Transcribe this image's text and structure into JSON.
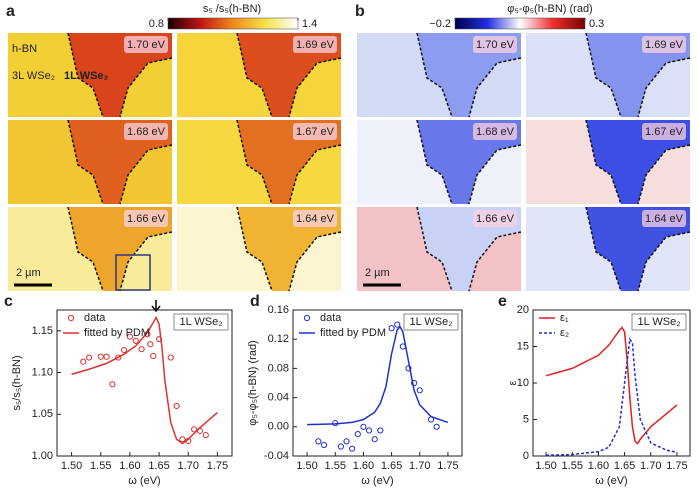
{
  "maps": [
    {
      "label": "a",
      "colorbar_title": "s₅ /s₅(h-BN)",
      "colorbar_ticks": [
        0.8,
        1.4
      ],
      "colorbar_colors": [
        "#1a0000",
        "#c0141a",
        "#f08a1c",
        "#f6e24a",
        "#ffffff"
      ],
      "annotations": [
        "h-BN",
        "3L WSe₂",
        "1L WSe₂"
      ],
      "scale_bar": "2 µm",
      "tiles": [
        {
          "energy": "1.70 eV",
          "bg": "#f3cf36",
          "region": "#d9441c"
        },
        {
          "energy": "1.69 eV",
          "bg": "#f5d43c",
          "region": "#dc4e1e"
        },
        {
          "energy": "1.68 eV",
          "bg": "#f2c632",
          "region": "#e0601f"
        },
        {
          "energy": "1.67 eV",
          "bg": "#f6d840",
          "region": "#e27020"
        },
        {
          "energy": "1.66 eV",
          "bg": "#f8ec9a",
          "region": "#eda52c"
        },
        {
          "energy": "1.64 eV",
          "bg": "#fbf5d0",
          "region": "#f0b432"
        }
      ]
    },
    {
      "label": "b",
      "colorbar_title": "φ₅-φ₅(h-BN) (rad)",
      "colorbar_ticks": [
        {
          "value": -0.2,
          "label": "−0.2"
        },
        0.3
      ],
      "colorbar_colors": [
        "#00004a",
        "#2030e0",
        "#ffffff",
        "#f03030",
        "#7a0000"
      ],
      "annotations": [],
      "scale_bar": "2 µm",
      "tiles": [
        {
          "energy": "1.70 eV",
          "bg": "#d2daf6",
          "region": "#8c9cf0"
        },
        {
          "energy": "1.69 eV",
          "bg": "#dae0f6",
          "region": "#8494ee"
        },
        {
          "energy": "1.68 eV",
          "bg": "#eef0fa",
          "region": "#6878ea"
        },
        {
          "energy": "1.67 eV",
          "bg": "#f6dede",
          "region": "#3c4ee4"
        },
        {
          "energy": "1.66 eV",
          "bg": "#f2c2c6",
          "region": "#c8d2f6"
        },
        {
          "energy": "1.64 eV",
          "bg": "#e0e6f8",
          "region": "#4052e2"
        }
      ]
    }
  ],
  "chart_data": [
    {
      "type": "line",
      "label": "c",
      "tag": "1L WSe₂",
      "xlabel": "ω (eV)",
      "ylabel": "s₅/s₅(h-BN)",
      "xlim": [
        1.475,
        1.775
      ],
      "ylim": [
        1.0,
        1.175
      ],
      "xticks": [
        {
          "value": 1.5,
          "label": "1.50"
        },
        1.55,
        {
          "value": 1.6,
          "label": "1.60"
        },
        1.65,
        {
          "value": 1.7,
          "label": "1.70"
        },
        1.75
      ],
      "yticks": [
        {
          "value": 1.0,
          "label": "1.00"
        },
        1.05,
        {
          "value": 1.1,
          "label": "1.10"
        },
        1.15
      ],
      "series": [
        {
          "name": "data",
          "color": "#e03030",
          "marker": "circle",
          "x": [
            1.52,
            1.53,
            1.55,
            1.56,
            1.57,
            1.58,
            1.59,
            1.6,
            1.61,
            1.62,
            1.63,
            1.635,
            1.64,
            1.65,
            1.67,
            1.68,
            1.69,
            1.7,
            1.71,
            1.72,
            1.73
          ],
          "values": [
            1.113,
            1.118,
            1.119,
            1.119,
            1.086,
            1.118,
            1.127,
            1.143,
            1.138,
            1.128,
            1.146,
            1.134,
            1.12,
            1.14,
            1.118,
            1.06,
            1.02,
            1.018,
            1.032,
            1.03,
            1.025
          ]
        },
        {
          "name": "fitted by PDM",
          "color": "#e03030",
          "line_style": "solid",
          "x": [
            1.5,
            1.53,
            1.56,
            1.59,
            1.61,
            1.63,
            1.64,
            1.645,
            1.65,
            1.655,
            1.66,
            1.67,
            1.68,
            1.69,
            1.7,
            1.72,
            1.75
          ],
          "values": [
            1.098,
            1.104,
            1.111,
            1.122,
            1.132,
            1.148,
            1.16,
            1.166,
            1.158,
            1.13,
            1.09,
            1.04,
            1.02,
            1.015,
            1.02,
            1.034,
            1.052
          ]
        }
      ]
    },
    {
      "type": "line",
      "label": "d",
      "tag": "1L WSe₂",
      "xlabel": "ω (eV)",
      "ylabel": "φ₅-φ₅(h-BN) (rad)",
      "xlim": [
        1.475,
        1.775
      ],
      "ylim": [
        -0.04,
        0.16
      ],
      "xticks": [
        {
          "value": 1.5,
          "label": "1.50"
        },
        1.55,
        {
          "value": 1.6,
          "label": "1.60"
        },
        1.65,
        {
          "value": 1.7,
          "label": "1.70"
        },
        1.75
      ],
      "yticks": [
        -0.04,
        {
          "value": 0,
          "label": "0.00"
        },
        0.04,
        0.08,
        0.12,
        0.16
      ],
      "series": [
        {
          "name": "data",
          "color": "#2030d0",
          "marker": "circle",
          "x": [
            1.52,
            1.53,
            1.55,
            1.56,
            1.57,
            1.58,
            1.59,
            1.6,
            1.61,
            1.62,
            1.63,
            1.65,
            1.66,
            1.67,
            1.68,
            1.69,
            1.7,
            1.72,
            1.73
          ],
          "values": [
            -0.02,
            -0.025,
            0.005,
            -0.027,
            -0.02,
            -0.03,
            -0.01,
            0.0,
            -0.005,
            -0.017,
            -0.005,
            0.135,
            0.14,
            0.11,
            0.08,
            0.06,
            0.05,
            0.01,
            0.0
          ]
        },
        {
          "name": "fitted by PDM",
          "color": "#2030d0",
          "line_style": "solid",
          "x": [
            1.5,
            1.55,
            1.58,
            1.6,
            1.62,
            1.63,
            1.64,
            1.65,
            1.66,
            1.665,
            1.67,
            1.68,
            1.69,
            1.7,
            1.72,
            1.75
          ],
          "values": [
            0.003,
            0.004,
            0.006,
            0.01,
            0.02,
            0.032,
            0.055,
            0.1,
            0.133,
            0.137,
            0.13,
            0.09,
            0.05,
            0.03,
            0.014,
            0.006
          ]
        }
      ]
    },
    {
      "type": "line",
      "label": "e",
      "tag": "1L WSe₂",
      "xlabel": "ω (eV)",
      "ylabel": "ε",
      "xlim": [
        1.475,
        1.775
      ],
      "ylim": [
        0,
        20
      ],
      "xticks": [
        {
          "value": 1.5,
          "label": "1.50"
        },
        1.55,
        {
          "value": 1.6,
          "label": "1.60"
        },
        1.65,
        {
          "value": 1.7,
          "label": "1.70"
        },
        1.75
      ],
      "yticks": [
        0,
        5,
        10,
        15,
        20
      ],
      "series": [
        {
          "name": "ε₁",
          "color": "#e02020",
          "line_style": "solid",
          "x": [
            1.5,
            1.55,
            1.6,
            1.62,
            1.64,
            1.645,
            1.65,
            1.655,
            1.66,
            1.665,
            1.67,
            1.675,
            1.68,
            1.7,
            1.73,
            1.75
          ],
          "values": [
            11.0,
            12.0,
            13.8,
            15.2,
            17.2,
            17.6,
            17.0,
            13.0,
            8.0,
            4.0,
            2.0,
            1.7,
            2.3,
            4.0,
            5.8,
            7.0
          ]
        },
        {
          "name": "ε₂",
          "color": "#2030d0",
          "line_style": "dashed",
          "x": [
            1.5,
            1.55,
            1.6,
            1.62,
            1.64,
            1.65,
            1.66,
            1.665,
            1.67,
            1.68,
            1.7,
            1.73,
            1.75
          ],
          "values": [
            0.1,
            0.2,
            0.6,
            1.2,
            4.0,
            10.0,
            16.0,
            15.5,
            11.0,
            5.0,
            1.8,
            0.8,
            0.5
          ]
        }
      ]
    }
  ]
}
